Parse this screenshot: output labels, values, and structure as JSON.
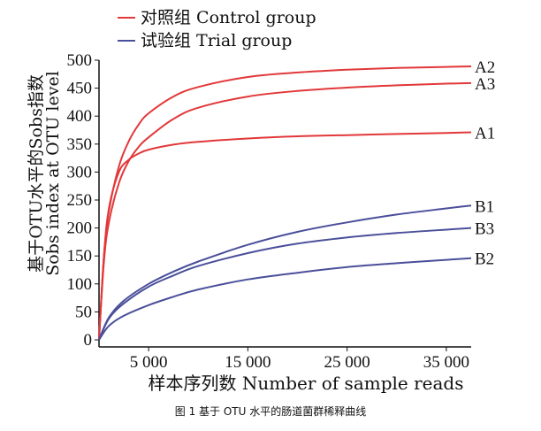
{
  "colors": {
    "control": "#e2383a",
    "trial": "#4a4f9a",
    "axis": "#111111"
  },
  "chart_data": {
    "type": "line",
    "xlabel": "样本序列数 Number of sample reads",
    "ylabel_zh": "基于OTU水平的Sobs指数",
    "ylabel_en": "Sobs index at OTU level",
    "xlim": [
      0,
      37500
    ],
    "ylim": [
      0,
      500
    ],
    "x_ticks": [
      5000,
      15000,
      25000,
      35000
    ],
    "x_tick_labels": [
      "5 000",
      "15 000",
      "25 000",
      "35 000"
    ],
    "y_ticks": [
      0,
      50,
      100,
      150,
      200,
      250,
      300,
      350,
      400,
      450,
      500
    ],
    "legend": [
      {
        "label": "对照组 Control group",
        "color": "#e2383a"
      },
      {
        "label": "试验组 Trial group",
        "color": "#4a4f9a"
      }
    ],
    "series": [
      {
        "name": "A2",
        "group": "control",
        "x": [
          0,
          500,
          1000,
          2000,
          3000,
          4000,
          5000,
          7500,
          10000,
          15000,
          20000,
          25000,
          30000,
          35000,
          37500
        ],
        "values": [
          0,
          150,
          230,
          310,
          355,
          385,
          405,
          435,
          452,
          470,
          478,
          483,
          486,
          488,
          489
        ]
      },
      {
        "name": "A3",
        "group": "control",
        "x": [
          0,
          500,
          1000,
          2000,
          3000,
          4000,
          5000,
          7500,
          10000,
          15000,
          20000,
          25000,
          30000,
          35000,
          37500
        ],
        "values": [
          0,
          140,
          210,
          280,
          320,
          345,
          362,
          395,
          415,
          435,
          445,
          451,
          455,
          458,
          459
        ]
      },
      {
        "name": "A1",
        "group": "control",
        "x": [
          0,
          500,
          1000,
          2000,
          3000,
          4000,
          5000,
          7500,
          10000,
          15000,
          20000,
          25000,
          30000,
          35000,
          37500
        ],
        "values": [
          0,
          150,
          235,
          300,
          322,
          333,
          340,
          349,
          354,
          360,
          364,
          366,
          368,
          370,
          371
        ]
      },
      {
        "name": "B1",
        "group": "trial",
        "x": [
          0,
          1000,
          2500,
          5000,
          7500,
          10000,
          15000,
          20000,
          25000,
          30000,
          35000,
          37500
        ],
        "values": [
          0,
          40,
          70,
          100,
          122,
          140,
          170,
          193,
          210,
          224,
          235,
          240
        ]
      },
      {
        "name": "B3",
        "group": "trial",
        "x": [
          0,
          1000,
          2500,
          5000,
          7500,
          10000,
          15000,
          20000,
          25000,
          30000,
          35000,
          37500
        ],
        "values": [
          0,
          38,
          65,
          95,
          115,
          132,
          155,
          172,
          183,
          191,
          197,
          200
        ]
      },
      {
        "name": "B2",
        "group": "trial",
        "x": [
          0,
          1000,
          2500,
          5000,
          7500,
          10000,
          15000,
          20000,
          25000,
          30000,
          35000,
          37500
        ],
        "values": [
          0,
          25,
          43,
          62,
          77,
          90,
          108,
          120,
          130,
          137,
          143,
          146
        ]
      }
    ]
  },
  "caption": "图 1  基于 OTU 水平的肠道菌群稀释曲线"
}
